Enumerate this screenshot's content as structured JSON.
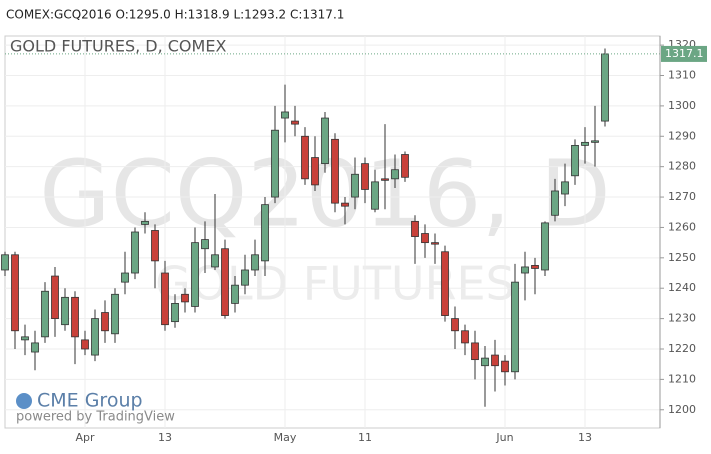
{
  "header": "COMEX:GCQ2016 O:1295.0 H:1318.9 L:1293.2 C:1317.1",
  "watermark": {
    "symbol": "GCQ2016, D",
    "name": "GOLD FUTURES"
  },
  "logo": {
    "brand": "CME Group",
    "powered": "powered by TradingView"
  },
  "chart_data": {
    "type": "candlestick",
    "title": "GOLD FUTURES, D, COMEX",
    "categories": [
      null,
      null,
      null,
      null,
      null,
      null,
      null,
      null,
      "Apr",
      null,
      null,
      null,
      null,
      null,
      null,
      null,
      "13",
      null,
      null,
      null,
      null,
      null,
      null,
      null,
      null,
      null,
      null,
      null,
      "May",
      null,
      null,
      null,
      null,
      null,
      null,
      null,
      "11",
      null,
      null,
      null,
      null,
      null,
      null,
      null,
      null,
      null,
      null,
      null,
      null,
      null,
      "Jun",
      null,
      null,
      null,
      null,
      null,
      null,
      null,
      "13",
      null,
      null
    ],
    "open": [
      1246,
      1251,
      1223,
      1219,
      1224,
      1244,
      1228,
      1237,
      1223,
      1218,
      1232,
      1225,
      1242,
      1245,
      1261,
      1259,
      1245,
      1229,
      1238,
      1234,
      1253,
      1247,
      1253,
      1235,
      1241,
      1246,
      1249,
      1270,
      1296,
      1295,
      1290,
      1283,
      1281,
      1289,
      1268,
      1270,
      1281,
      1266,
      1276,
      1276,
      1284,
      1262,
      1258,
      1255,
      1252,
      1230,
      1226,
      1222,
      1214.5,
      1218,
      1216,
      1212.5,
      1245,
      1247.5,
      1246,
      1264,
      1271,
      1277,
      1287,
      1288,
      1295
    ],
    "high": [
      1252,
      1252,
      1228,
      1226,
      1242,
      1247,
      1240,
      1239,
      1226,
      1233,
      1236,
      1240,
      1252,
      1260,
      1265,
      1261,
      1249,
      1238,
      1240,
      1260,
      1262,
      1271,
      1256,
      1244,
      1251,
      1256,
      1270,
      1300,
      1307,
      1300,
      1293,
      1290,
      1298,
      1291,
      1270,
      1283,
      1283,
      1279,
      1294,
      1284,
      1285,
      1264,
      1261,
      1258,
      1254,
      1234,
      1228,
      1226,
      1221,
      1223,
      1218,
      1248,
      1252,
      1250,
      1262,
      1276,
      1281,
      1289,
      1293,
      1300,
      1318.9
    ],
    "low": [
      1244,
      1220,
      1218,
      1213,
      1222,
      1224,
      1226,
      1215,
      1218,
      1216,
      1222,
      1222,
      1238,
      1243,
      1258,
      1240,
      1226,
      1227,
      1232,
      1232,
      1245,
      1246,
      1230,
      1232,
      1238,
      1244,
      1244,
      1268,
      1288,
      1290,
      1274,
      1272,
      1278,
      1265,
      1261,
      1266,
      1268,
      1265,
      1266,
      1273,
      1275,
      1248,
      1250,
      1248,
      1229,
      1220,
      1218,
      1210,
      1201,
      1206,
      1208,
      1210,
      1236,
      1238,
      1244,
      1262,
      1267,
      1274,
      1281,
      1280,
      1293.2
    ],
    "close": [
      1251,
      1226,
      1224,
      1222,
      1239,
      1230,
      1237,
      1224,
      1220,
      1230,
      1226,
      1238,
      1245,
      1258.5,
      1262,
      1249,
      1228,
      1235,
      1235.5,
      1255,
      1256,
      1251,
      1231,
      1241,
      1246,
      1251,
      1267.5,
      1292,
      1298,
      1294,
      1276,
      1274,
      1296,
      1268,
      1267,
      1277.5,
      1272.5,
      1275,
      1275.5,
      1279,
      1276.5,
      1257,
      1255,
      1254.5,
      1231,
      1226,
      1222,
      1216.5,
      1217,
      1214.5,
      1212.5,
      1242,
      1247,
      1246.5,
      1261.5,
      1272,
      1275,
      1287,
      1288,
      1288.5,
      1317.1
    ],
    "up_color": "#6ba684",
    "down_color": "#c8413a",
    "ylim": [
      1194,
      1323
    ],
    "yticks": [
      1200,
      1210,
      1220,
      1230,
      1240,
      1250,
      1260,
      1270,
      1280,
      1290,
      1300,
      1310,
      1320
    ],
    "grid": true
  }
}
